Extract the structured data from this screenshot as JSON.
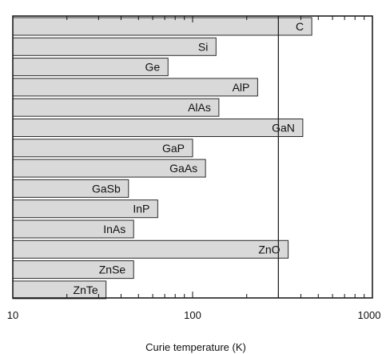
{
  "chart_data": {
    "type": "bar",
    "orientation": "horizontal",
    "scale": "log",
    "categories": [
      "C",
      "Si",
      "Ge",
      "AlP",
      "AlAs",
      "GaN",
      "GaP",
      "GaAs",
      "GaSb",
      "InP",
      "InAs",
      "ZnO",
      "ZnSe",
      "ZnTe"
    ],
    "values": [
      460,
      135,
      73,
      230,
      140,
      410,
      100,
      118,
      44,
      64,
      47,
      340,
      47,
      33
    ],
    "xlabel": "Curie temperature (K)",
    "xlim": [
      10,
      1000
    ],
    "xticks": [
      "10",
      "100",
      "1000"
    ],
    "reference_line": 300,
    "grid": false
  }
}
